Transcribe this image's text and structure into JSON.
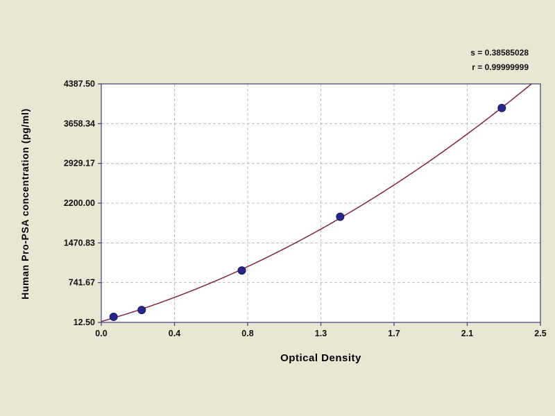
{
  "chart_data": {
    "type": "scatter",
    "title": "",
    "xlabel": "Optical Density",
    "ylabel": "Human Pro-PSA concentration (pg/ml)",
    "xlim": [
      0.0,
      2.5
    ],
    "ylim": [
      12.5,
      4387.5
    ],
    "x_tick_labels": [
      "0.0",
      "0.4",
      "0.8",
      "1.3",
      "1.7",
      "2.1",
      "2.5"
    ],
    "y_tick_labels": [
      "12.50",
      "741.67",
      "1470.83",
      "2200.00",
      "2929.17",
      "3658.34",
      "4387.50"
    ],
    "grid": "dashed",
    "legend": "none",
    "series": [
      {
        "name": "standards",
        "type": "scatter",
        "points": [
          {
            "x": 0.07,
            "y": 115
          },
          {
            "x": 0.23,
            "y": 240
          },
          {
            "x": 0.8,
            "y": 965
          },
          {
            "x": 1.36,
            "y": 1950
          },
          {
            "x": 2.28,
            "y": 3945
          }
        ]
      },
      {
        "name": "fit-curve",
        "type": "line",
        "fit_model": "quadratic-through-standards"
      }
    ],
    "annotations": [
      "s = 0.38585028",
      "r = 0.99999999"
    ],
    "colors": {
      "page_background": "#e9e6d3",
      "plot_background": "#ffffff",
      "grid": "#bcbcbc",
      "frame": "#3c3c6e",
      "point": "#26268a",
      "curve": "#7d2248",
      "text": "#111111"
    }
  }
}
